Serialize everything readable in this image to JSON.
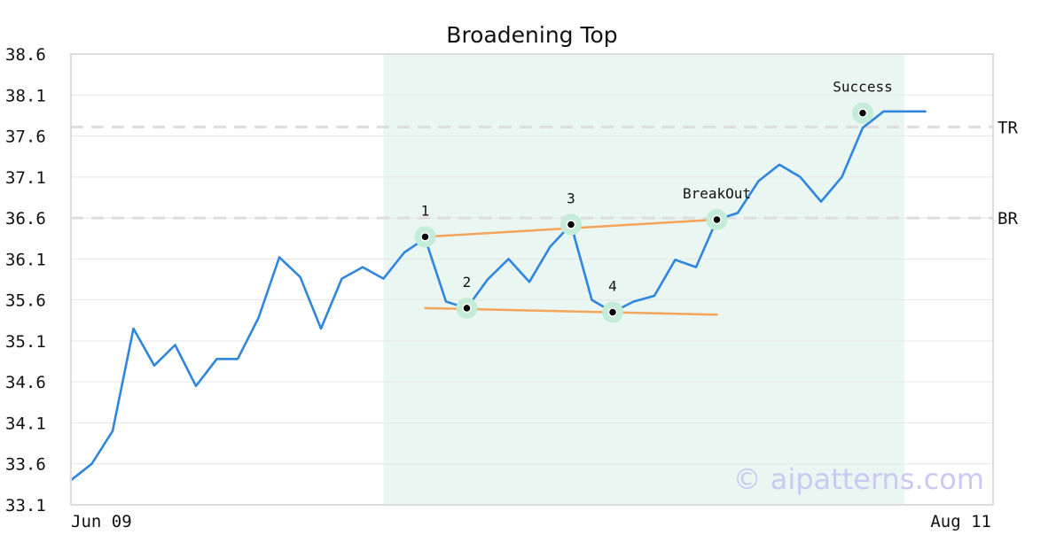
{
  "chart_data": {
    "type": "line",
    "title": "Broadening Top",
    "xlabel": "",
    "ylabel": "",
    "x_tick_labels": [
      "Jun 09",
      "Aug 11"
    ],
    "y_ticks": [
      33.1,
      33.6,
      34.1,
      34.6,
      35.1,
      35.6,
      36.1,
      36.6,
      37.1,
      37.6,
      38.1,
      38.6
    ],
    "ylim": [
      33.1,
      38.6
    ],
    "grid": true,
    "colors": {
      "line": "#2e86de",
      "trend": "#f5a55a",
      "highlight_band": "#eaf6f1",
      "marker_halo": "#c4ecd8",
      "level_line": "#dddddd"
    },
    "series": [
      {
        "values": [
          33.4,
          33.6,
          34.0,
          35.25,
          34.8,
          35.05,
          34.55,
          34.88,
          34.88,
          35.38,
          36.12,
          35.88,
          35.25,
          35.86,
          36.0,
          35.86,
          36.18,
          36.35,
          35.58,
          35.5,
          35.85,
          36.1,
          35.82,
          36.25,
          36.52,
          35.6,
          35.45,
          35.58,
          35.65,
          36.09,
          36.0,
          36.58,
          36.66,
          37.05,
          37.25,
          37.1,
          36.8,
          37.1,
          37.7,
          37.9,
          37.9,
          37.9
        ]
      }
    ],
    "highlight_band": {
      "from_index": 15,
      "to_index": 40
    },
    "reference_lines": [
      {
        "label": "TR",
        "value": 37.71
      },
      {
        "label": "BR",
        "value": 36.6
      }
    ],
    "trend_lines": [
      {
        "from": {
          "x": 17,
          "y": 36.37
        },
        "to": {
          "x": 31,
          "y": 36.58
        }
      },
      {
        "from": {
          "x": 17,
          "y": 35.5
        },
        "to": {
          "x": 31,
          "y": 35.42
        }
      }
    ],
    "markers": [
      {
        "label": "1",
        "x": 17,
        "y": 36.37
      },
      {
        "label": "2",
        "x": 19,
        "y": 35.5
      },
      {
        "label": "3",
        "x": 24,
        "y": 36.52
      },
      {
        "label": "4",
        "x": 26,
        "y": 35.45
      },
      {
        "label": "BreakOut",
        "x": 31,
        "y": 36.58
      },
      {
        "label": "Success",
        "x": 38,
        "y": 37.88
      }
    ],
    "watermark": "© aipatterns.com"
  }
}
